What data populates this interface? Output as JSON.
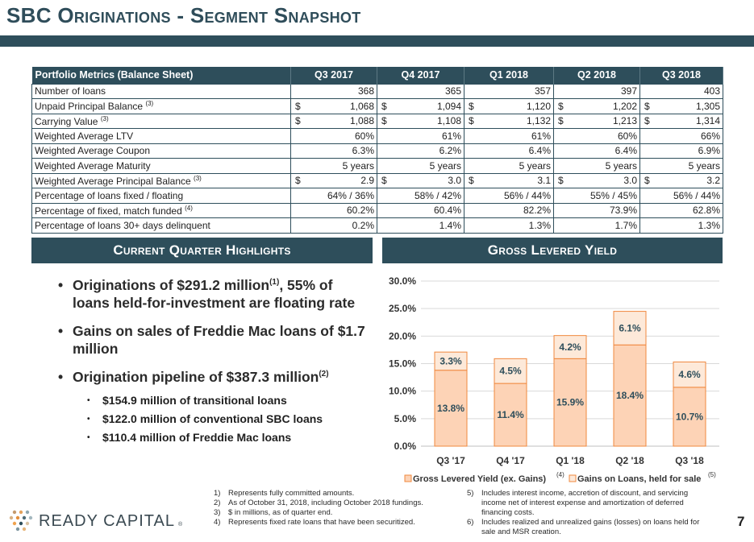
{
  "slide": {
    "title": "SBC Originations - Segment Snapshot",
    "page_number": "7"
  },
  "metrics_table": {
    "header": [
      "Portfolio Metrics (Balance Sheet)",
      "Q3 2017",
      "Q4 2017",
      "Q1 2018",
      "Q2 2018",
      "Q3 2018"
    ],
    "rows": [
      {
        "label": "Number of loans",
        "note": "",
        "dollar": false,
        "values": [
          "368",
          "365",
          "357",
          "397",
          "403"
        ]
      },
      {
        "label": "Unpaid Principal Balance",
        "note": "(3)",
        "dollar": true,
        "values": [
          "1,068",
          "1,094",
          "1,120",
          "1,202",
          "1,305"
        ]
      },
      {
        "label": "Carrying Value",
        "note": "(3)",
        "dollar": true,
        "values": [
          "1,088",
          "1,108",
          "1,132",
          "1,213",
          "1,314"
        ]
      },
      {
        "label": "Weighted Average LTV",
        "note": "",
        "dollar": false,
        "values": [
          "60%",
          "61%",
          "61%",
          "60%",
          "66%"
        ]
      },
      {
        "label": "Weighted Average Coupon",
        "note": "",
        "dollar": false,
        "values": [
          "6.3%",
          "6.2%",
          "6.4%",
          "6.4%",
          "6.9%"
        ]
      },
      {
        "label": "Weighted Average Maturity",
        "note": "",
        "dollar": false,
        "values": [
          "5 years",
          "5 years",
          "5 years",
          "5 years",
          "5 years"
        ]
      },
      {
        "label": "Weighted Average Principal Balance",
        "note": "(3)",
        "dollar": true,
        "values": [
          "2.9",
          "3.0",
          "3.1",
          "3.0",
          "3.2"
        ]
      },
      {
        "label": "Percentage of loans fixed / floating",
        "note": "",
        "dollar": false,
        "values": [
          "64% / 36%",
          "58% / 42%",
          "56% / 44%",
          "55% / 45%",
          "56% / 44%"
        ]
      },
      {
        "label": "Percentage of fixed, match funded",
        "note": "(4)",
        "dollar": false,
        "values": [
          "60.2%",
          "60.4%",
          "82.2%",
          "73.9%",
          "62.8%"
        ]
      },
      {
        "label": "Percentage of loans 30+ days delinquent",
        "note": "",
        "dollar": false,
        "values": [
          "0.2%",
          "1.4%",
          "1.3%",
          "1.7%",
          "1.3%"
        ]
      }
    ],
    "dollar_sign": "$"
  },
  "highlights": {
    "header": "Current Quarter Highlights",
    "items": [
      {
        "text_a": "Originations of $291.2 million",
        "sup": "(1)",
        "text_b": ", 55% of loans held-for-investment are floating rate"
      },
      {
        "text_a": "Gains on sales of Freddie Mac loans of $1.7 million",
        "sup": "",
        "text_b": ""
      },
      {
        "text_a": "Origination pipeline of $387.3 million",
        "sup": "(2)",
        "text_b": ""
      }
    ],
    "sub_items": [
      "$154.9 million of transitional loans",
      "$122.0 million of conventional SBC loans",
      "$110.4 million of Freddie Mac loans"
    ]
  },
  "chart_header": "Gross Levered Yield",
  "chart_data": {
    "type": "bar",
    "stacked": true,
    "categories": [
      "Q3 '17",
      "Q4 '17",
      "Q1 '18",
      "Q2 '18",
      "Q3 '18"
    ],
    "series": [
      {
        "name": "Gross Levered Yield (ex. Gains)",
        "note": "(4)",
        "values": [
          13.8,
          11.4,
          15.9,
          18.4,
          10.7
        ],
        "labels": [
          "13.8%",
          "11.4%",
          "15.9%",
          "18.4%",
          "10.7%"
        ]
      },
      {
        "name": "Gains on Loans, held for sale",
        "note": "(5)",
        "values": [
          3.3,
          4.5,
          4.2,
          6.1,
          4.6
        ],
        "labels": [
          "3.3%",
          "4.5%",
          "4.2%",
          "6.1%",
          "4.6%"
        ]
      }
    ],
    "ylim": [
      0,
      30
    ],
    "yticks": [
      "0.0%",
      "5.0%",
      "10.0%",
      "15.0%",
      "20.0%",
      "25.0%",
      "30.0%"
    ],
    "grid": true,
    "legend": "bottom",
    "colors": {
      "base": "#fdd3b6",
      "top": "#fde9d9",
      "stroke": "#f0883e",
      "label": "#2e4e5b"
    }
  },
  "footnotes": {
    "left": [
      {
        "num": "1)",
        "text": "Represents fully committed amounts."
      },
      {
        "num": "2)",
        "text": "As of October 31, 2018, including October 2018 fundings."
      },
      {
        "num": "3)",
        "text": "$ in millions, as of quarter end."
      },
      {
        "num": "4)",
        "text": "Represents fixed rate loans that have been securitized."
      }
    ],
    "right": [
      {
        "num": "5)",
        "text": "Includes interest income, accretion of discount, and servicing income net of interest expense and amortization of deferred financing costs."
      },
      {
        "num": "6)",
        "text": "Includes realized and unrealized gains (losses) on loans held for sale and MSR creation."
      }
    ]
  },
  "logo": {
    "text": "READY CAPITAL",
    "mark": "®"
  },
  "colors": {
    "brand_dark": "#2e4e5b",
    "accent_orange": "#f0883e"
  }
}
